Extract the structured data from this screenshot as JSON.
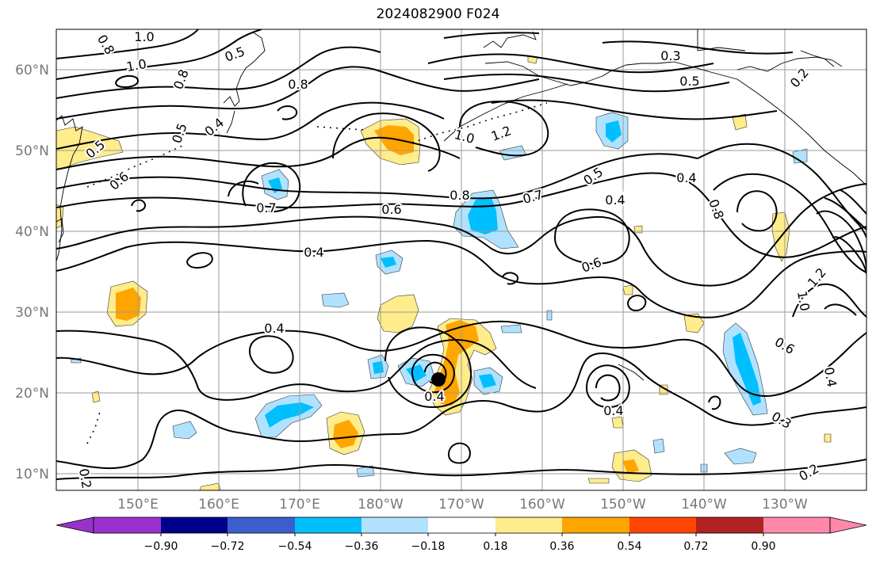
{
  "title": "2024082900 F024",
  "map": {
    "lat_labels": [
      "60°N",
      "50°N",
      "40°N",
      "30°N",
      "20°N",
      "10°N"
    ],
    "lon_labels": [
      "150°E",
      "160°E",
      "170°E",
      "180°W",
      "170°W",
      "160°W",
      "150°W",
      "140°W",
      "130°W"
    ],
    "contour_labels": [
      "1.0",
      "0.8",
      "1.0",
      "0.5",
      "0.8",
      "0.8",
      "0.5",
      "0.4",
      "0.5",
      "0.6",
      "0.7",
      "0.6",
      "0.8",
      "0.7",
      "1.0",
      "1.2",
      "0.3",
      "0.5",
      "0.2",
      "0.5",
      "0.4",
      "0.4",
      "0.8",
      "1.0",
      "1.2",
      "0.4",
      "0.6",
      "0.4",
      "0.4",
      "0.6",
      "0.4",
      "0.3",
      "0.4",
      "0.2",
      "0.2"
    ],
    "storm_marker": "filled-circle"
  },
  "colorbar": {
    "ticks": [
      "−0.90",
      "−0.72",
      "−0.54",
      "−0.36",
      "−0.18",
      "0.18",
      "0.36",
      "0.54",
      "0.72",
      "0.90"
    ],
    "colors": [
      "#9932cc",
      "#00008b",
      "#3a5fcd",
      "#00bfff",
      "#b0e2ff",
      "#ffffff",
      "#ffec8b",
      "#ffa500",
      "#ff4500",
      "#b22222",
      "#ff88aa"
    ]
  },
  "colors": {
    "fill_light_yellow": "#ffec8b",
    "fill_orange": "#ffa500",
    "fill_light_blue": "#b0e2ff",
    "fill_blue": "#00bfff",
    "contour": "#000000",
    "grid": "#9a9a9a"
  }
}
